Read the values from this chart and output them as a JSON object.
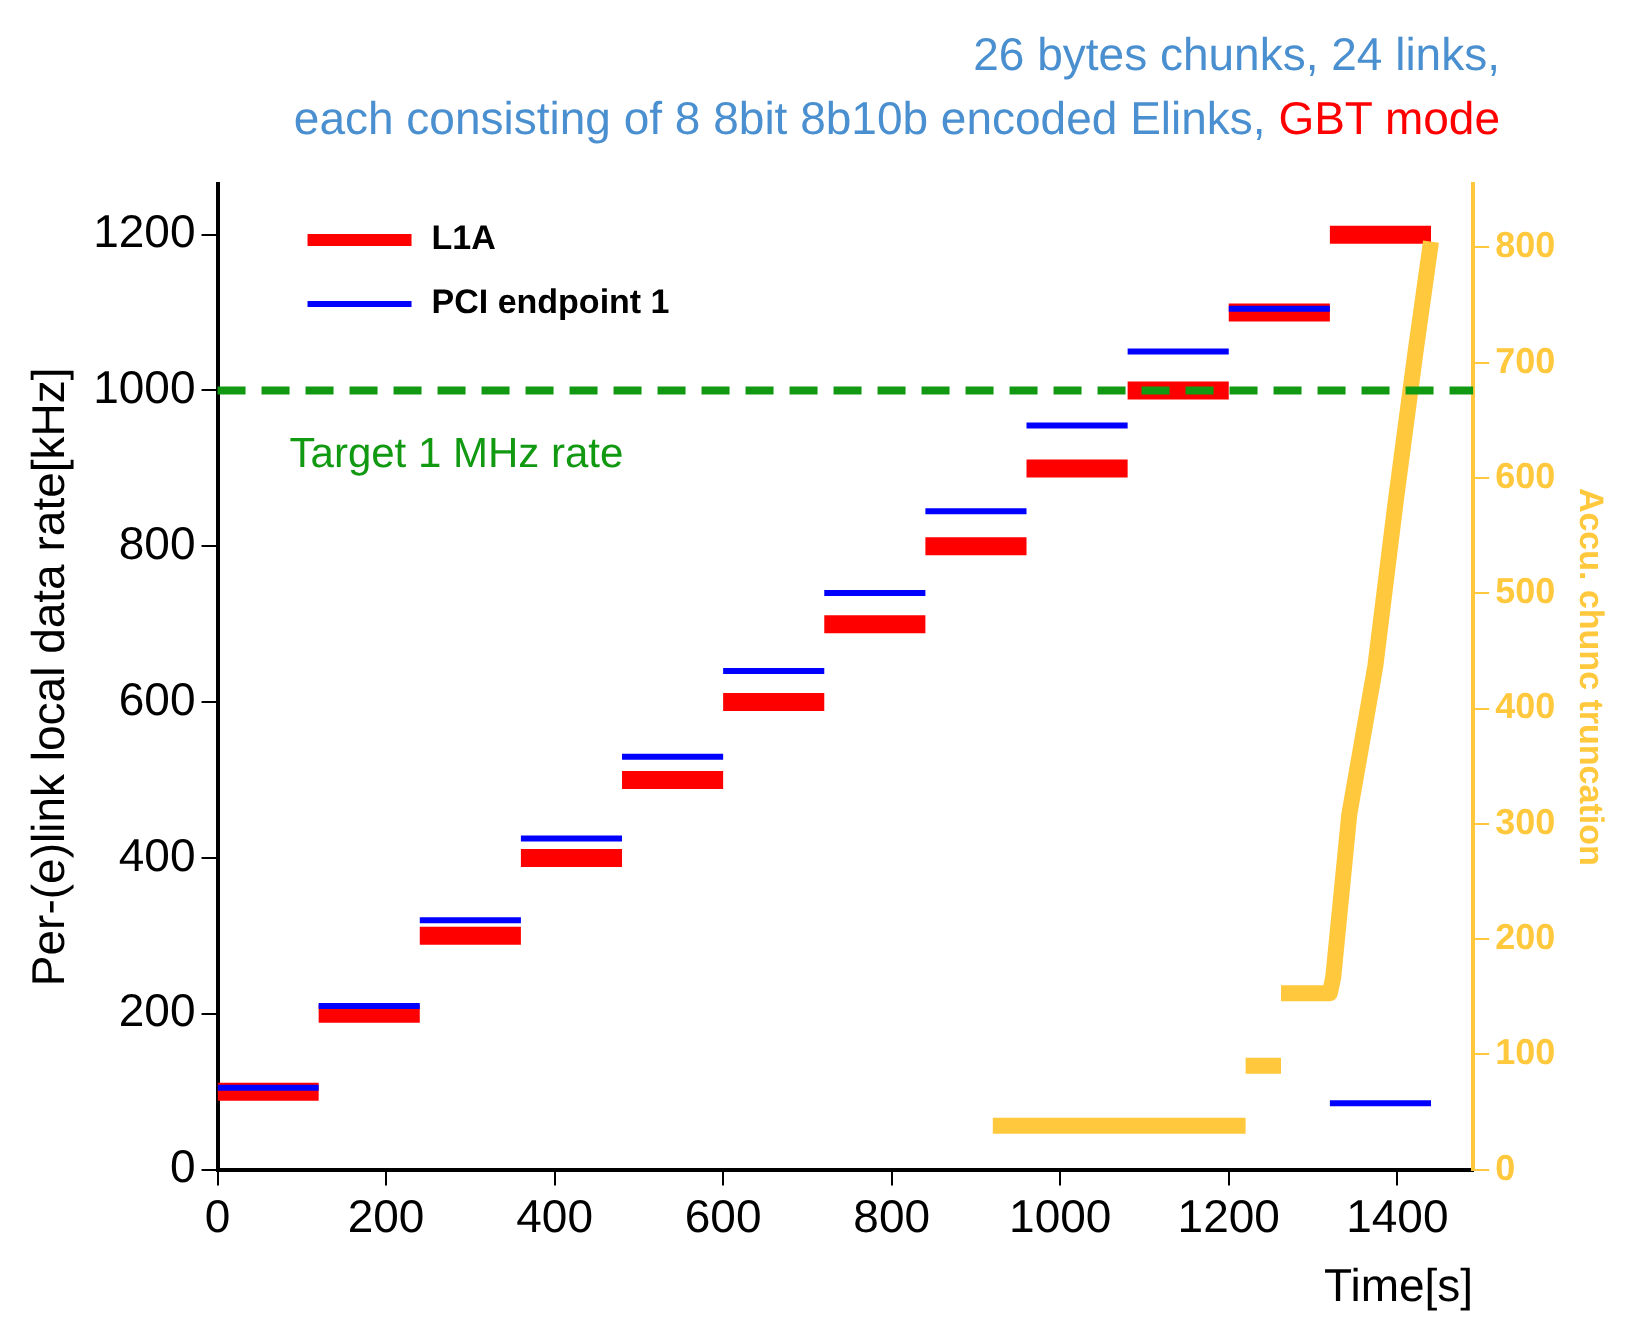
{
  "chart_data": {
    "type": "line",
    "title": "26 bytes chunks, 24 links,",
    "subtitle": "each consisting of 8 8bit 8b10b encoded Elinks,",
    "annotations": [
      "GBT mode"
    ],
    "xlabel": "Time[s]",
    "ylabel": "Per-(e)link local data rate[kHz]",
    "y2label": "Accu. chunc truncation",
    "xlim": [
      0,
      1490
    ],
    "xticks": [
      0,
      200,
      400,
      600,
      800,
      1000,
      1200,
      1400
    ],
    "ylim": [
      0,
      1265
    ],
    "yticks": [
      0,
      200,
      400,
      600,
      800,
      1000,
      1200
    ],
    "y2lim": [
      0,
      855
    ],
    "y2ticks": [
      0,
      100,
      200,
      300,
      400,
      500,
      600,
      700,
      800
    ],
    "grid": false,
    "legend": "top left",
    "line_style": "solid",
    "ref_lines": [
      {
        "axis": "y",
        "value": 1000,
        "label": "Target 1 MHz rate",
        "color": "#119911",
        "line_style": "dashed"
      }
    ],
    "series": [
      {
        "name": "L1A",
        "color": "#ff0000",
        "x": [
          0,
          120,
          120,
          240,
          240,
          360,
          360,
          480,
          480,
          600,
          600,
          720,
          720,
          840,
          840,
          960,
          960,
          1080,
          1080,
          1200,
          1200,
          1320,
          1320,
          1440
        ],
        "values": [
          100,
          100,
          200,
          200,
          300,
          300,
          400,
          400,
          500,
          500,
          600,
          600,
          700,
          700,
          800,
          800,
          900,
          900,
          1000,
          1000,
          1100,
          1100,
          1200,
          1200
        ]
      },
      {
        "name": "PCI endpoint 1",
        "color": "#0000ff",
        "x": [
          0,
          120,
          120,
          240,
          240,
          360,
          360,
          480,
          480,
          600,
          600,
          720,
          720,
          840,
          840,
          960,
          960,
          1080,
          1080,
          1200,
          1200,
          1320,
          1320,
          1440
        ],
        "values": [
          105,
          105,
          210,
          210,
          320,
          320,
          425,
          425,
          530,
          530,
          640,
          640,
          740,
          740,
          845,
          845,
          955,
          955,
          1050,
          1050,
          1105,
          1105,
          85,
          85
        ]
      },
      {
        "color": "#ffc83d",
        "axis": "y2",
        "x": [
          920,
          1220,
          1220,
          1262,
          1262,
          1320,
          1324,
          1343,
          1374,
          1398,
          1421,
          1440
        ],
        "values": [
          38,
          38,
          90,
          90,
          153,
          153,
          167,
          308,
          437,
          579,
          706,
          805
        ]
      }
    ]
  }
}
